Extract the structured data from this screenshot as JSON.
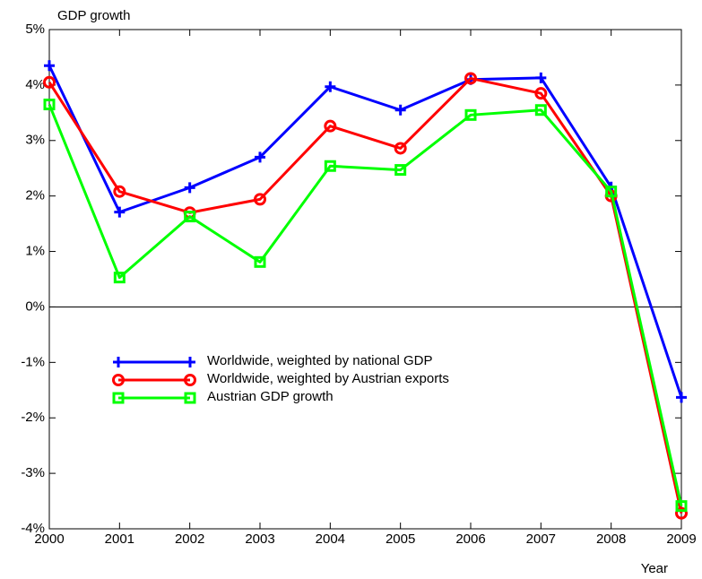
{
  "chart_data": {
    "type": "line",
    "y_label": "GDP growth",
    "x_label": "Year",
    "x": [
      2000,
      2001,
      2002,
      2003,
      2004,
      2005,
      2006,
      2007,
      2008,
      2009
    ],
    "xlim": [
      2000,
      2009
    ],
    "xticks": [
      2000,
      2001,
      2002,
      2003,
      2004,
      2005,
      2006,
      2007,
      2008,
      2009
    ],
    "ylim": [
      -4,
      5
    ],
    "yticks": [
      {
        "value": -4,
        "label": "-4%"
      },
      {
        "value": -3,
        "label": "-3%"
      },
      {
        "value": -2,
        "label": "-2%"
      },
      {
        "value": -1,
        "label": "-1%"
      },
      {
        "value": 0,
        "label": "0%"
      },
      {
        "value": 1,
        "label": "1%"
      },
      {
        "value": 2,
        "label": "2%"
      },
      {
        "value": 3,
        "label": "3%"
      },
      {
        "value": 4,
        "label": "4%"
      },
      {
        "value": 5,
        "label": "5%"
      }
    ],
    "grid": false,
    "legend": "lower left",
    "series": [
      {
        "name": "Worldwide, weighted by national GDP",
        "color": "#0000ff",
        "marker": "plus",
        "values": [
          4.35,
          1.71,
          2.15,
          2.7,
          3.97,
          3.55,
          4.1,
          4.13,
          2.16,
          -1.63
        ]
      },
      {
        "name": "Worldwide, weighted by Austrian exports",
        "color": "#ff0000",
        "marker": "circle",
        "values": [
          4.05,
          2.08,
          1.7,
          1.94,
          3.26,
          2.86,
          4.12,
          3.85,
          2.0,
          -3.72
        ]
      },
      {
        "name": "Austrian GDP growth",
        "color": "#00ff00",
        "marker": "square",
        "values": [
          3.65,
          0.53,
          1.63,
          0.81,
          2.54,
          2.47,
          3.46,
          3.55,
          2.08,
          -3.59
        ]
      }
    ]
  }
}
